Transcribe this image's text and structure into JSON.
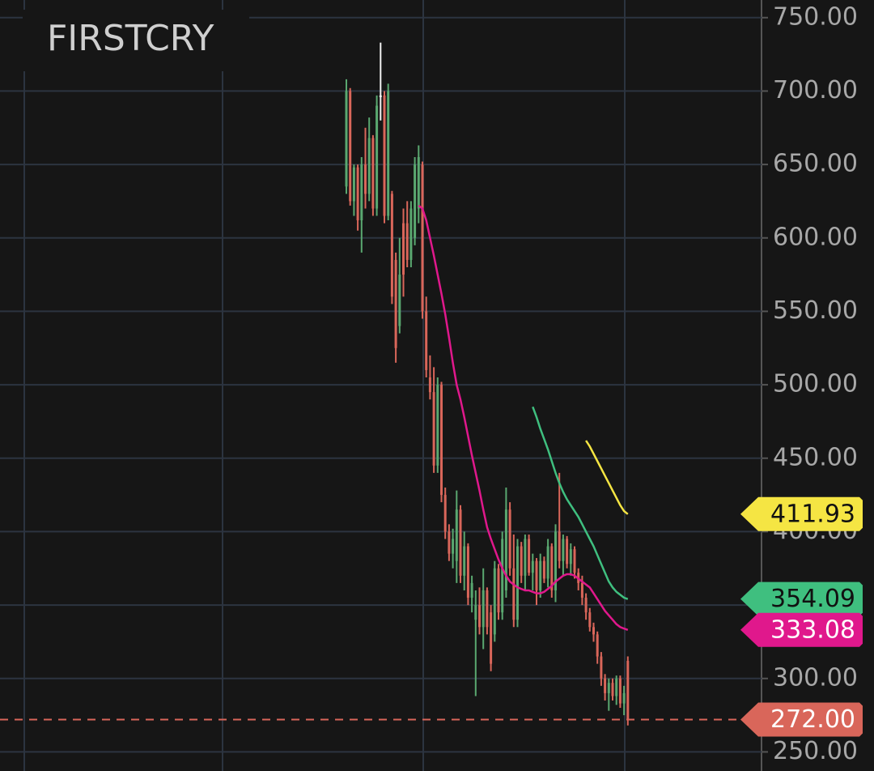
{
  "chart_data": {
    "type": "candlestick",
    "title": "FIRSTCRY",
    "ylim": [
      237,
      762
    ],
    "yticks": [
      {
        "value": 250,
        "label": "250.00"
      },
      {
        "value": 300,
        "label": "300.00"
      },
      {
        "value": 350,
        "label": "350.00"
      },
      {
        "value": 400,
        "label": "400.00"
      },
      {
        "value": 450,
        "label": "450.00"
      },
      {
        "value": 500,
        "label": "500.00"
      },
      {
        "value": 550,
        "label": "550.00"
      },
      {
        "value": 600,
        "label": "600.00"
      },
      {
        "value": 650,
        "label": "650.00"
      },
      {
        "value": 700,
        "label": "700.00"
      },
      {
        "value": 750,
        "label": "750.00"
      }
    ],
    "grid": true,
    "up_color": "#5aa870",
    "down_color": "#d9665a",
    "doji_color": "#f2f2f2",
    "candles": [
      [
        635,
        708,
        630,
        700
      ],
      [
        700,
        702,
        622,
        625
      ],
      [
        625,
        650,
        615,
        648
      ],
      [
        648,
        650,
        605,
        612
      ],
      [
        612,
        655,
        590,
        650
      ],
      [
        650,
        675,
        620,
        630
      ],
      [
        630,
        682,
        625,
        668
      ],
      [
        668,
        670,
        615,
        620
      ],
      [
        620,
        697,
        615,
        690
      ],
      [
        697,
        733,
        680,
        697
      ],
      [
        697,
        700,
        610,
        615
      ],
      [
        615,
        705,
        612,
        700
      ],
      [
        630,
        632,
        555,
        560
      ],
      [
        585,
        590,
        515,
        525
      ],
      [
        540,
        600,
        535,
        575
      ],
      [
        610,
        620,
        560,
        575
      ],
      [
        610,
        625,
        580,
        585
      ],
      [
        585,
        625,
        580,
        620
      ],
      [
        600,
        655,
        595,
        650
      ],
      [
        620,
        663,
        610,
        655
      ],
      [
        650,
        652,
        545,
        550
      ],
      [
        550,
        560,
        505,
        510
      ],
      [
        505,
        520,
        490,
        495
      ],
      [
        495,
        512,
        440,
        445
      ],
      [
        445,
        505,
        440,
        500
      ],
      [
        500,
        502,
        420,
        425
      ],
      [
        425,
        430,
        395,
        400
      ],
      [
        400,
        405,
        380,
        385
      ],
      [
        385,
        402,
        375,
        395
      ],
      [
        380,
        428,
        365,
        415
      ],
      [
        415,
        418,
        365,
        370
      ],
      [
        370,
        400,
        360,
        390
      ],
      [
        390,
        392,
        350,
        355
      ],
      [
        355,
        370,
        345,
        365
      ],
      [
        340,
        360,
        288,
        350
      ],
      [
        350,
        362,
        330,
        335
      ],
      [
        335,
        375,
        320,
        360
      ],
      [
        360,
        362,
        330,
        335
      ],
      [
        345,
        350,
        305,
        310
      ],
      [
        330,
        380,
        325,
        375
      ],
      [
        375,
        378,
        340,
        345
      ],
      [
        345,
        400,
        340,
        395
      ],
      [
        360,
        430,
        355,
        415
      ],
      [
        415,
        420,
        370,
        375
      ],
      [
        375,
        398,
        335,
        340
      ],
      [
        340,
        395,
        335,
        390
      ],
      [
        390,
        393,
        365,
        370
      ],
      [
        370,
        398,
        360,
        395
      ],
      [
        395,
        398,
        370,
        372
      ],
      [
        372,
        385,
        360,
        380
      ],
      [
        380,
        382,
        350,
        360
      ],
      [
        360,
        385,
        355,
        380
      ],
      [
        380,
        383,
        365,
        368
      ],
      [
        368,
        395,
        362,
        390
      ],
      [
        390,
        392,
        355,
        360
      ],
      [
        360,
        405,
        352,
        400
      ],
      [
        400,
        440,
        375,
        380
      ],
      [
        380,
        398,
        370,
        395
      ],
      [
        395,
        397,
        375,
        378
      ],
      [
        378,
        392,
        370,
        388
      ],
      [
        388,
        390,
        368,
        372
      ],
      [
        372,
        375,
        360,
        365
      ],
      [
        365,
        370,
        350,
        355
      ],
      [
        355,
        358,
        340,
        345
      ],
      [
        345,
        348,
        332,
        335
      ],
      [
        335,
        338,
        325,
        330
      ],
      [
        330,
        332,
        310,
        315
      ],
      [
        315,
        318,
        295,
        300
      ],
      [
        300,
        303,
        285,
        290
      ],
      [
        290,
        300,
        278,
        297
      ],
      [
        297,
        300,
        285,
        288
      ],
      [
        288,
        302,
        282,
        300
      ],
      [
        300,
        302,
        280,
        283
      ],
      [
        283,
        295,
        275,
        290
      ],
      [
        312,
        315,
        268,
        272
      ]
    ],
    "series": [
      {
        "color": "#e0188c",
        "values": [
          null,
          null,
          null,
          null,
          null,
          null,
          null,
          null,
          null,
          null,
          null,
          null,
          null,
          null,
          null,
          null,
          null,
          null,
          null,
          622,
          620,
          612,
          600,
          588,
          575,
          562,
          548,
          532,
          515,
          500,
          490,
          478,
          465,
          452,
          440,
          428,
          415,
          403,
          395,
          388,
          381,
          375,
          370,
          366,
          364,
          362,
          361,
          360,
          360,
          359,
          358,
          358,
          359,
          361,
          363,
          366,
          368,
          370,
          371,
          371,
          370,
          368,
          366,
          364,
          362,
          358,
          354,
          350,
          346,
          343,
          340,
          337,
          335,
          334,
          333.08
        ]
      },
      {
        "color": "#3fbf7f",
        "values": [
          null,
          null,
          null,
          null,
          null,
          null,
          null,
          null,
          null,
          null,
          null,
          null,
          null,
          null,
          null,
          null,
          null,
          null,
          null,
          null,
          null,
          null,
          null,
          null,
          null,
          null,
          null,
          null,
          null,
          null,
          null,
          null,
          null,
          null,
          null,
          null,
          null,
          null,
          null,
          null,
          null,
          null,
          null,
          null,
          null,
          null,
          null,
          null,
          null,
          485,
          478,
          470,
          463,
          456,
          448,
          440,
          433,
          427,
          422,
          418,
          414,
          410,
          405,
          400,
          395,
          390,
          384,
          378,
          372,
          366,
          362,
          359,
          357,
          355,
          354.09
        ]
      },
      {
        "color": "#f5e543",
        "values": [
          null,
          null,
          null,
          null,
          null,
          null,
          null,
          null,
          null,
          null,
          null,
          null,
          null,
          null,
          null,
          null,
          null,
          null,
          null,
          null,
          null,
          null,
          null,
          null,
          null,
          null,
          null,
          null,
          null,
          null,
          null,
          null,
          null,
          null,
          null,
          null,
          null,
          null,
          null,
          null,
          null,
          null,
          null,
          null,
          null,
          null,
          null,
          null,
          null,
          null,
          null,
          null,
          null,
          null,
          null,
          null,
          null,
          null,
          null,
          null,
          null,
          null,
          null,
          462,
          458,
          453,
          448,
          443,
          438,
          433,
          428,
          423,
          418,
          414,
          411.93
        ]
      }
    ],
    "markers": [
      {
        "value": 411.93,
        "label": "411.93",
        "color": "#f5e543",
        "text_color": "#111111"
      },
      {
        "value": 354.09,
        "label": "354.09",
        "color": "#3fbf7f",
        "text_color": "#111111"
      },
      {
        "value": 333.08,
        "label": "333.08",
        "color": "#e0188c",
        "text_color": "#ffffff"
      },
      {
        "value": 272,
        "label": "272.00",
        "color": "#d9665a",
        "text_color": "#ffffff",
        "dashed": true
      }
    ]
  }
}
